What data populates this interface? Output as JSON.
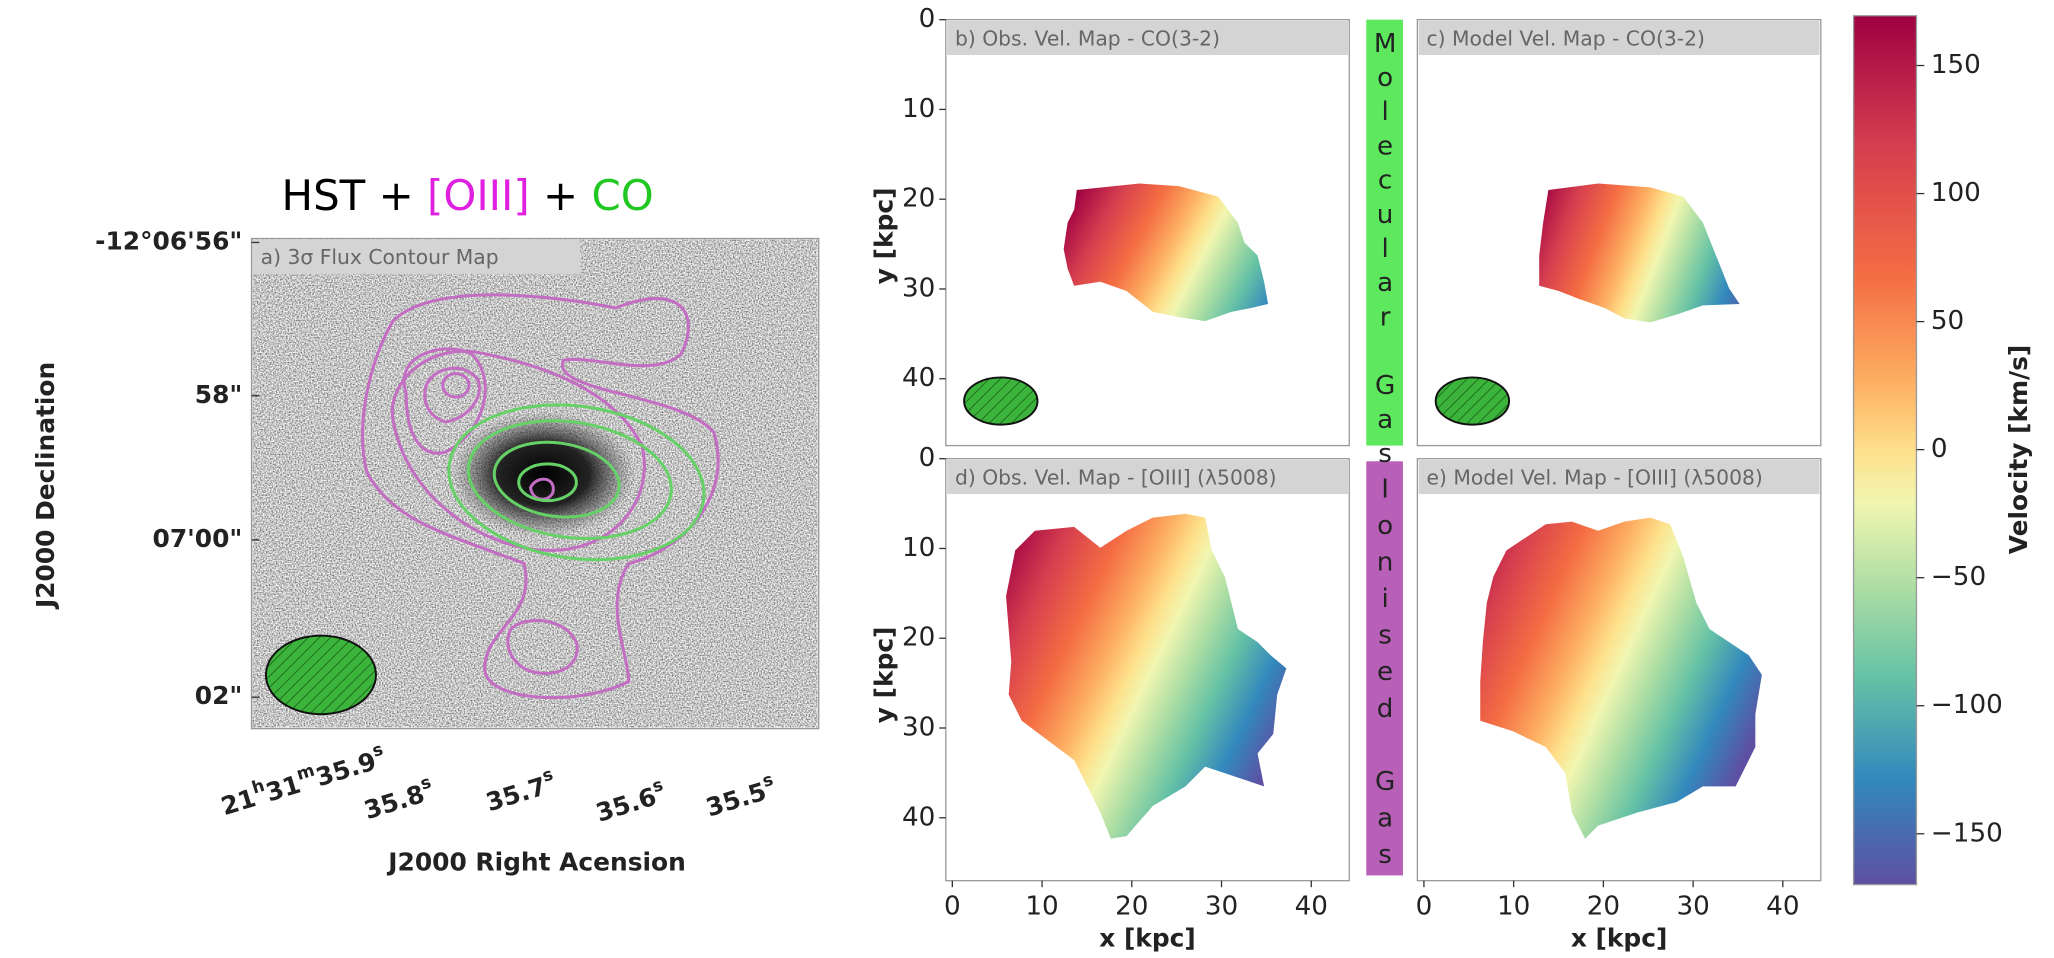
{
  "figure": {
    "title_parts": [
      "HST + ",
      "[OIII]",
      " + ",
      "CO"
    ],
    "panel_a": {
      "label": "a) 3σ Flux Contour Map",
      "dec_ticks": [
        "-12°06'56\"",
        "58\"",
        "07'00\"",
        "02\""
      ],
      "ra_ticks": [
        [
          "21",
          "h",
          "31",
          "m",
          "35.9",
          "s"
        ],
        [
          "35.8",
          "s"
        ],
        [
          "35.7",
          "s"
        ],
        [
          "35.6",
          "s"
        ],
        [
          "35.5",
          "s"
        ]
      ],
      "x_label": "J2000 Right Acension",
      "y_label": "J2000 Declination"
    },
    "panels": [
      {
        "label": "b) Obs. Vel. Map - CO(3-2)"
      },
      {
        "label": "c) Model Vel. Map - CO(3-2)"
      },
      {
        "label": "d) Obs. Vel. Map - [OIII] (λ5008)"
      },
      {
        "label": "e) Model Vel. Map - [OIII] (λ5008)"
      }
    ],
    "map_ticks": [
      "0",
      "10",
      "20",
      "30",
      "40"
    ],
    "x_label": "x [kpc]",
    "y_label": "y [kpc]",
    "side_labels": [
      "Molecular Gas",
      "Ionised Gas"
    ],
    "colorbar": {
      "label": "Velocity [km/s]",
      "ticks": [
        "150",
        "100",
        "50",
        "0",
        "−50",
        "−100",
        "−150"
      ]
    }
  }
}
